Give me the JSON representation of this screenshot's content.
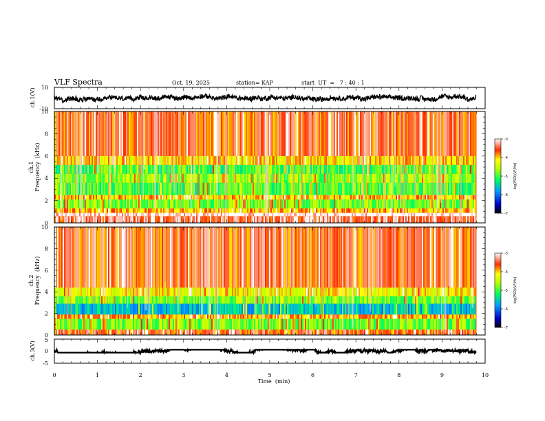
{
  "header": {
    "title": "VLF Spectra",
    "date": "Oct. 19, 2025",
    "station": "station= KAP",
    "start_ut": "start  UT  =   7 : 40 : 1"
  },
  "chart_data": [
    {
      "type": "line",
      "id": "ch1-waveform",
      "ylabel": "ch.1(V)",
      "ylim": [
        -10,
        10
      ],
      "y_ticklabels": [
        "10",
        "-10"
      ],
      "xlim": [
        0,
        10
      ],
      "trace_extent_min": 9.8,
      "trace_amplitude_v": [
        -5,
        5
      ]
    },
    {
      "type": "heatmap",
      "id": "ch1-spectrogram",
      "ylabel": "ch.1",
      "ylabel2": "Frequency  (kHz)",
      "ylim": [
        0,
        10
      ],
      "y_ticklabels": [
        "0",
        "2",
        "4",
        "6",
        "8",
        "10"
      ],
      "xlim": [
        0,
        10
      ],
      "data_extent_min": 9.8,
      "colorbar": {
        "label": "log(PSD)(V²/Hz)",
        "range": [
          -7,
          -3
        ],
        "ticklabels": [
          "-3",
          "-4",
          "-5",
          "-6",
          "-7"
        ]
      },
      "bands_khz": [
        {
          "from": 0.0,
          "to": 0.6,
          "level": -3.4
        },
        {
          "from": 0.6,
          "to": 0.9,
          "level": -3.0
        },
        {
          "from": 0.9,
          "to": 1.3,
          "level": -4.0
        },
        {
          "from": 1.3,
          "to": 2.1,
          "level": -4.8
        },
        {
          "from": 2.1,
          "to": 2.5,
          "level": -4.0
        },
        {
          "from": 2.5,
          "to": 3.6,
          "level": -5.0
        },
        {
          "from": 3.6,
          "to": 4.4,
          "level": -4.7
        },
        {
          "from": 4.4,
          "to": 5.2,
          "level": -5.0
        },
        {
          "from": 5.2,
          "to": 6.0,
          "level": -4.1
        },
        {
          "from": 6.0,
          "to": 10.0,
          "level": -3.6
        }
      ]
    },
    {
      "type": "heatmap",
      "id": "ch2-spectrogram",
      "ylabel": "ch.2",
      "ylabel2": "Frequency  (kHz)",
      "ylim": [
        0,
        10
      ],
      "y_ticklabels": [
        "0",
        "2",
        "4",
        "6",
        "8",
        "10"
      ],
      "xlim": [
        0,
        10
      ],
      "data_extent_min": 9.8,
      "colorbar": {
        "label": "log(PSD)(V²/Hz)",
        "range": [
          -7,
          -3
        ],
        "ticklabels": [
          "-3",
          "-4",
          "-5",
          "-6",
          "-7"
        ]
      },
      "bands_khz": [
        {
          "from": 0.0,
          "to": 0.5,
          "level": -3.6
        },
        {
          "from": 0.5,
          "to": 1.5,
          "level": -4.8
        },
        {
          "from": 1.5,
          "to": 1.9,
          "level": -3.9
        },
        {
          "from": 1.9,
          "to": 2.9,
          "level": -5.6
        },
        {
          "from": 2.9,
          "to": 3.6,
          "level": -4.8
        },
        {
          "from": 3.6,
          "to": 4.4,
          "level": -4.2
        },
        {
          "from": 4.4,
          "to": 10.0,
          "level": -3.6
        }
      ]
    },
    {
      "type": "line",
      "id": "ch3-waveform",
      "ylabel": "ch.3(V)",
      "ylim": [
        -5,
        5
      ],
      "y_ticklabels": [
        "5",
        "0",
        "-5"
      ],
      "xlim": [
        0,
        10
      ],
      "trace_extent_min": 9.8,
      "trace_amplitude_v": [
        -0.6,
        0.6
      ]
    }
  ],
  "x_axis": {
    "label": "Time  (min)",
    "ticks": [
      0,
      1,
      2,
      3,
      4,
      5,
      6,
      7,
      8,
      9,
      10
    ],
    "ticklabels": [
      "0",
      "1",
      "2",
      "3",
      "4",
      "5",
      "6",
      "7",
      "8",
      "9",
      "10"
    ]
  }
}
